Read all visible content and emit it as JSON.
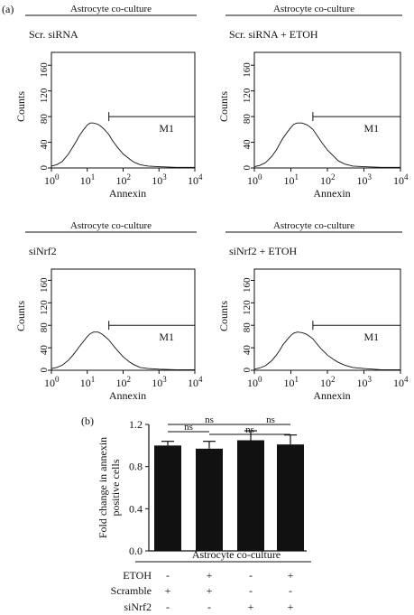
{
  "figure": {
    "panel_a_label": "(a)",
    "panel_b_label": "(b)"
  },
  "chart_data": [
    {
      "type": "line",
      "panel": "a",
      "header": "Astrocyte co-culture",
      "title": "Scr. siRNA",
      "xlabel": "Annexin",
      "ylabel": "Counts",
      "x_scale": "log",
      "xlim": [
        1,
        10000
      ],
      "ylim": [
        0,
        180
      ],
      "xticks": [
        "10",
        "10",
        "10",
        "10",
        "10"
      ],
      "xtick_exponents": [
        "0",
        "1",
        "2",
        "3",
        "4"
      ],
      "yticks": [
        "0",
        "40",
        "80",
        "120",
        "160"
      ],
      "gate": {
        "label": "M1",
        "from": 40,
        "to": 10000,
        "level": 80
      },
      "series": [
        {
          "x": [
            1,
            1.4,
            2,
            3,
            4,
            5,
            6,
            8,
            10,
            12,
            15,
            20,
            25,
            30,
            40,
            50,
            70,
            100,
            150,
            200,
            300,
            500,
            1000,
            3000,
            10000
          ],
          "values": [
            3,
            5,
            10,
            22,
            33,
            42,
            50,
            60,
            67,
            70,
            70,
            68,
            64,
            60,
            52,
            43,
            32,
            22,
            14,
            9,
            5,
            3,
            2,
            1,
            1
          ]
        }
      ]
    },
    {
      "type": "line",
      "panel": "a",
      "header": "Astrocyte co-culture",
      "title": "Scr. siRNA + ETOH",
      "xlabel": "Annexin",
      "ylabel": "Counts",
      "x_scale": "log",
      "xlim": [
        1,
        10000
      ],
      "ylim": [
        0,
        180
      ],
      "xticks": [
        "10",
        "10",
        "10",
        "10",
        "10"
      ],
      "xtick_exponents": [
        "0",
        "1",
        "2",
        "3",
        "4"
      ],
      "yticks": [
        "0",
        "40",
        "80",
        "120",
        "160"
      ],
      "gate": {
        "label": "M1",
        "from": 40,
        "to": 10000,
        "level": 80
      },
      "series": [
        {
          "x": [
            1,
            1.4,
            2,
            3,
            4,
            5,
            6,
            8,
            10,
            12,
            15,
            20,
            25,
            30,
            40,
            50,
            70,
            100,
            150,
            200,
            300,
            500,
            1000,
            3000,
            10000
          ],
          "values": [
            2,
            4,
            8,
            18,
            28,
            38,
            46,
            56,
            63,
            68,
            70,
            70,
            68,
            66,
            60,
            52,
            40,
            28,
            18,
            11,
            6,
            3,
            2,
            1,
            1
          ]
        }
      ]
    },
    {
      "type": "line",
      "panel": "a",
      "header": "Astrocyte co-culture",
      "title": "siNrf2",
      "xlabel": "Annexin",
      "ylabel": "Counts",
      "x_scale": "log",
      "xlim": [
        1,
        10000
      ],
      "ylim": [
        0,
        180
      ],
      "xticks": [
        "10",
        "10",
        "10",
        "10",
        "10"
      ],
      "xtick_exponents": [
        "0",
        "1",
        "2",
        "3",
        "4"
      ],
      "yticks": [
        "0",
        "40",
        "80",
        "120",
        "160"
      ],
      "gate": {
        "label": "M1",
        "from": 40,
        "to": 10000,
        "level": 80
      },
      "series": [
        {
          "x": [
            1,
            1.4,
            2,
            3,
            4,
            5,
            6,
            8,
            10,
            12,
            15,
            20,
            25,
            30,
            40,
            50,
            70,
            100,
            150,
            200,
            300,
            500,
            1000,
            3000,
            10000
          ],
          "values": [
            3,
            5,
            9,
            18,
            27,
            35,
            42,
            52,
            60,
            65,
            68,
            68,
            65,
            61,
            54,
            46,
            35,
            24,
            15,
            10,
            5,
            3,
            2,
            1,
            1
          ]
        }
      ]
    },
    {
      "type": "line",
      "panel": "a",
      "header": "Astrocyte co-culture",
      "title": "siNrf2 + ETOH",
      "xlabel": "Annexin",
      "ylabel": "Counts",
      "x_scale": "log",
      "xlim": [
        1,
        10000
      ],
      "ylim": [
        0,
        180
      ],
      "xticks": [
        "10",
        "10",
        "10",
        "10",
        "10"
      ],
      "xtick_exponents": [
        "0",
        "1",
        "2",
        "3",
        "4"
      ],
      "yticks": [
        "0",
        "40",
        "80",
        "120",
        "160"
      ],
      "gate": {
        "label": "M1",
        "from": 40,
        "to": 10000,
        "level": 80
      },
      "series": [
        {
          "x": [
            1,
            1.4,
            2,
            3,
            4,
            5,
            6,
            8,
            10,
            12,
            15,
            20,
            25,
            30,
            40,
            50,
            70,
            100,
            150,
            200,
            300,
            500,
            1000,
            3000,
            10000
          ],
          "values": [
            2,
            4,
            8,
            17,
            27,
            36,
            45,
            55,
            62,
            66,
            68,
            67,
            65,
            62,
            56,
            48,
            37,
            27,
            19,
            14,
            9,
            5,
            3,
            1,
            1
          ]
        }
      ]
    },
    {
      "type": "bar",
      "panel": "b",
      "ylabel": "Fold change in annexin positive cells",
      "ylim": [
        0,
        1.2
      ],
      "yticks": [
        "0.0",
        "0.4",
        "0.8",
        "1.2"
      ],
      "values": [
        1.0,
        0.97,
        1.05,
        1.01
      ],
      "errors": [
        0.04,
        0.07,
        0.09,
        0.09
      ],
      "bar_color": "#111111",
      "significance": [
        {
          "from": 0,
          "to": 1,
          "label": "ns"
        },
        {
          "from": 0,
          "to": 2,
          "label": "ns"
        },
        {
          "from": 2,
          "to": 3,
          "label": "ns"
        },
        {
          "from": 1,
          "to": 3,
          "label": "ns"
        }
      ],
      "group_label": "Astrocyte co-culture",
      "conditions": [
        {
          "name": "ETOH",
          "values": [
            "-",
            "+",
            "-",
            "+"
          ]
        },
        {
          "name": "Scramble",
          "values": [
            "+",
            "+",
            "-",
            "-"
          ]
        },
        {
          "name": "siNrf2",
          "values": [
            "-",
            "-",
            "+",
            "+"
          ]
        }
      ]
    }
  ]
}
